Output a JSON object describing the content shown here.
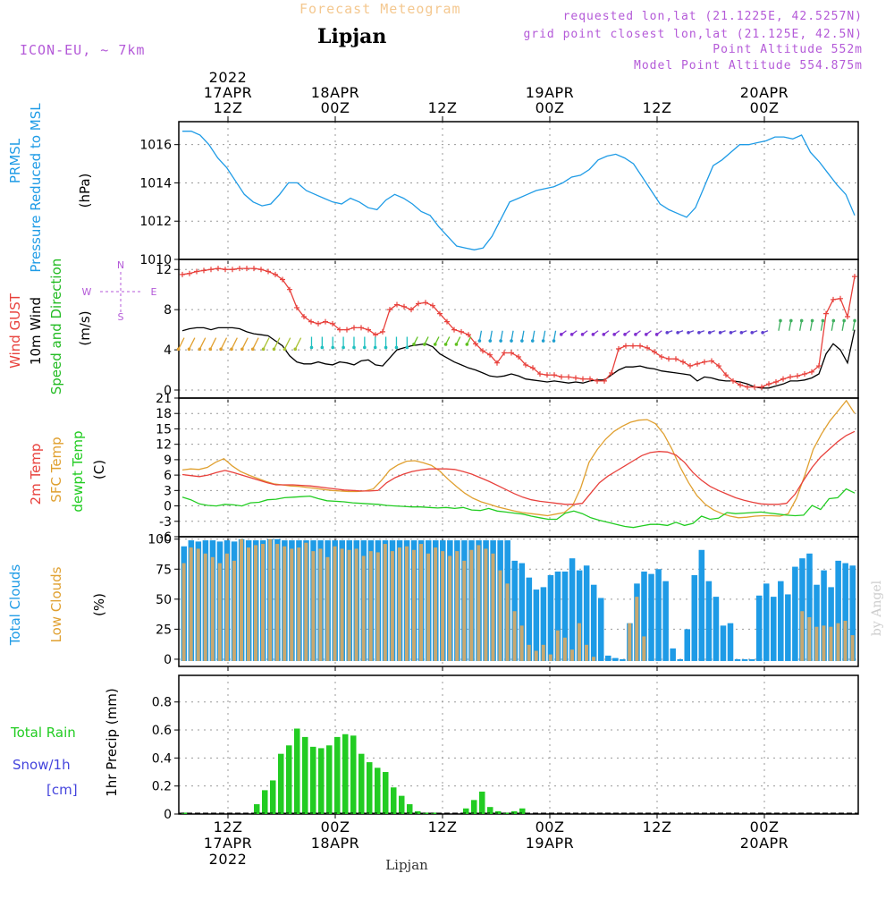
{
  "header": {
    "title": "Forecast Meteogram",
    "location": "Lipjan",
    "model": "ICON-EU, ~ 7km",
    "requested": "requested lon,lat (21.1225E, 42.5257N)",
    "gridpoint": "grid point closest lon,lat (21.125E, 42.5N)",
    "point_altitude": "Point Altitude 552m",
    "model_altitude": "Model Point Altitude 554.875m",
    "footer_location": "Lipjan",
    "watermark": "by Angel"
  },
  "colors": {
    "pressure": "#1e9be6",
    "gust": "#e8413c",
    "wind": "#000000",
    "wind_dir": "#22bb22",
    "temp": "#e8413c",
    "sfc_temp": "#e0a030",
    "dewpt": "#22cc22",
    "total_clouds": "#1e9be6",
    "low_clouds": "#c8a870",
    "rain": "#22cc22",
    "snow": "#4444dd",
    "header_title": "#f4c890",
    "meta": "#b45ad8"
  },
  "time_axis": {
    "top": [
      {
        "line1": "2022",
        "line2": "17APR",
        "line3": "12Z",
        "hour": 12
      },
      {
        "line1": "",
        "line2": "18APR",
        "line3": "00Z",
        "hour": 24
      },
      {
        "line1": "",
        "line2": "",
        "line3": "12Z",
        "hour": 36
      },
      {
        "line1": "",
        "line2": "19APR",
        "line3": "00Z",
        "hour": 48
      },
      {
        "line1": "",
        "line2": "",
        "line3": "12Z",
        "hour": 60
      },
      {
        "line1": "",
        "line2": "20APR",
        "line3": "00Z",
        "hour": 72
      }
    ],
    "bottom": [
      {
        "line1": "12Z",
        "line2": "17APR",
        "line3": "2022",
        "hour": 12
      },
      {
        "line1": "00Z",
        "line2": "18APR",
        "line3": "",
        "hour": 24
      },
      {
        "line1": "12Z",
        "line2": "",
        "line3": "",
        "hour": 36
      },
      {
        "line1": "00Z",
        "line2": "19APR",
        "line3": "",
        "hour": 48
      },
      {
        "line1": "12Z",
        "line2": "",
        "line3": "",
        "hour": 60
      },
      {
        "line1": "00Z",
        "line2": "20APR",
        "line3": "",
        "hour": 72
      }
    ],
    "start_hour": 6.5,
    "end_hour": 82.5
  },
  "chart_data": [
    {
      "type": "line",
      "ylabel_a": "PRMSL",
      "ylabel_b": "Pressure Reduced to MSL",
      "units": "(hPa)",
      "ylim": [
        1010,
        1017.2
      ],
      "yticks": [
        1010,
        1012,
        1014,
        1016
      ],
      "series": [
        {
          "values": [
            1016.7,
            1016.7,
            1016.5,
            1016.0,
            1015.3,
            1014.8,
            1014.1,
            1013.4,
            1013.0,
            1012.8,
            1012.9,
            1013.4,
            1014.0,
            1014.0,
            1013.6,
            1013.4,
            1013.2,
            1013.0,
            1012.9,
            1013.2,
            1013.0,
            1012.7,
            1012.6,
            1013.1,
            1013.4,
            1013.2,
            1012.9,
            1012.5,
            1012.3,
            1011.7,
            1011.2,
            1010.7,
            1010.6,
            1010.5,
            1010.6,
            1011.2,
            1012.1,
            1013.0,
            1013.2,
            1013.4,
            1013.6,
            1013.7,
            1013.8,
            1014.0,
            1014.3,
            1014.4,
            1014.7,
            1015.2,
            1015.4,
            1015.5,
            1015.3,
            1015.0,
            1014.3,
            1013.6,
            1012.9,
            1012.6,
            1012.4,
            1012.2,
            1012.7,
            1013.8,
            1014.9,
            1015.2,
            1015.6,
            1016.0,
            1016.0,
            1016.1,
            1016.2,
            1016.4,
            1016.4,
            1016.3,
            1016.5,
            1015.6,
            1015.1,
            1014.5,
            1013.9,
            1013.4,
            1012.3
          ]
        }
      ]
    },
    {
      "type": "line",
      "ylabel_a": "Wind GUST",
      "ylabel_b": "10m Wind",
      "ylabel_c": "Speed and Direction",
      "units": "(m/s)",
      "compass": {
        "n": "N",
        "s": "S",
        "w": "W",
        "e": "E"
      },
      "ylim": [
        -0.8,
        13
      ],
      "yticks": [
        0,
        4,
        8,
        12
      ],
      "series": [
        {
          "values": [
            11.5,
            11.6,
            11.8,
            11.9,
            12.0,
            12.1,
            12.0,
            12.0,
            12.1,
            12.1,
            12.1,
            12.0,
            11.8,
            11.5,
            11.0,
            10.0,
            8.2,
            7.3,
            6.8,
            6.6,
            6.8,
            6.6,
            6.0,
            6.0,
            6.2,
            6.2,
            6.0,
            5.5,
            5.8,
            8.0,
            8.5,
            8.3,
            8.0,
            8.6,
            8.7,
            8.4,
            7.6,
            6.8,
            6.0,
            5.8,
            5.5,
            4.6,
            3.9,
            3.5,
            2.7,
            3.7,
            3.7,
            3.3,
            2.5,
            2.2,
            1.6,
            1.5,
            1.5,
            1.3,
            1.3,
            1.2,
            1.1,
            1.1,
            0.9,
            0.9,
            1.7,
            4.1,
            4.4,
            4.4,
            4.4,
            4.2,
            3.8,
            3.3,
            3.1,
            3.1,
            2.8,
            2.4,
            2.6,
            2.8,
            2.9,
            2.4,
            1.5,
            0.9,
            0.5,
            0.3,
            0.3,
            0.3,
            0.6,
            0.8,
            1.1,
            1.3,
            1.4,
            1.6,
            1.8,
            2.4,
            7.6,
            9.0,
            9.1,
            7.3,
            11.3
          ]
        },
        {
          "values": [
            5.9,
            6.1,
            6.2,
            6.2,
            6.0,
            6.2,
            6.2,
            6.2,
            6.1,
            5.8,
            5.6,
            5.5,
            5.4,
            4.9,
            4.4,
            3.4,
            2.8,
            2.6,
            2.6,
            2.8,
            2.6,
            2.5,
            2.8,
            2.7,
            2.5,
            2.9,
            3.0,
            2.5,
            2.4,
            3.2,
            4.0,
            4.2,
            4.4,
            4.5,
            4.6,
            4.3,
            3.6,
            3.2,
            2.8,
            2.5,
            2.2,
            2.0,
            1.7,
            1.4,
            1.3,
            1.4,
            1.6,
            1.4,
            1.1,
            1.0,
            0.9,
            0.8,
            0.9,
            0.8,
            0.7,
            0.8,
            0.7,
            0.9,
            1.0,
            1.0,
            1.5,
            2.0,
            2.3,
            2.3,
            2.4,
            2.2,
            2.1,
            1.9,
            1.8,
            1.7,
            1.6,
            1.5,
            0.9,
            1.3,
            1.2,
            1.0,
            0.9,
            0.9,
            0.8,
            0.6,
            0.3,
            0.2,
            0.2,
            0.4,
            0.6,
            0.9,
            0.9,
            1.0,
            1.2,
            1.6,
            3.6,
            4.6,
            4.0,
            2.7,
            6.0
          ]
        }
      ]
    },
    {
      "type": "line",
      "ylabel_a": "2m Temp",
      "ylabel_b": "SFC Temp",
      "ylabel_c": "dewpt Temp",
      "units": "(C)",
      "ylim": [
        -6,
        21
      ],
      "yticks": [
        -6,
        -3,
        0,
        3,
        6,
        9,
        12,
        15,
        18,
        21
      ],
      "series": [
        {
          "values": [
            6.1,
            5.9,
            5.7,
            6.0,
            6.5,
            6.9,
            6.5,
            6.0,
            5.5,
            5.0,
            4.5,
            4.1,
            4.1,
            4.1,
            4.0,
            3.9,
            3.7,
            3.5,
            3.3,
            3.1,
            3.0,
            2.9,
            2.9,
            3.0,
            4.5,
            5.5,
            6.2,
            6.7,
            7.0,
            7.2,
            7.2,
            7.2,
            7.1,
            6.7,
            6.2,
            5.5,
            4.8,
            4.0,
            3.2,
            2.4,
            1.7,
            1.2,
            0.9,
            0.7,
            0.5,
            0.3,
            0.3,
            0.5,
            2.5,
            4.5,
            5.8,
            6.8,
            7.8,
            8.8,
            9.8,
            10.4,
            10.6,
            10.5,
            9.9,
            8.5,
            6.5,
            5.0,
            3.8,
            3.0,
            2.3,
            1.6,
            1.1,
            0.7,
            0.4,
            0.3,
            0.3,
            0.5,
            2.3,
            5.0,
            7.5,
            9.5,
            11.0,
            12.5,
            13.7,
            14.5
          ]
        },
        {
          "values": [
            7.0,
            7.2,
            7.1,
            7.5,
            8.5,
            9.2,
            7.8,
            6.7,
            6.0,
            5.4,
            4.8,
            4.3,
            4.1,
            3.9,
            3.8,
            3.6,
            3.4,
            3.2,
            3.0,
            2.9,
            2.8,
            2.8,
            2.9,
            3.3,
            5.0,
            7.0,
            8.0,
            8.7,
            8.8,
            8.4,
            7.9,
            6.8,
            5.2,
            3.8,
            2.5,
            1.5,
            0.8,
            0.3,
            -0.2,
            -0.6,
            -1.0,
            -1.3,
            -1.5,
            -1.7,
            -1.9,
            -1.6,
            -1.3,
            0.0,
            3.5,
            8.5,
            11.0,
            13.0,
            14.5,
            15.5,
            16.3,
            16.7,
            16.8,
            16.0,
            14.0,
            11.0,
            7.5,
            4.5,
            2.0,
            0.3,
            -0.8,
            -1.5,
            -2.0,
            -2.3,
            -2.2,
            -2.0,
            -1.9,
            -1.9,
            -2.0,
            -1.5,
            1.5,
            6.0,
            11.0,
            14.0,
            16.5,
            18.5,
            20.5,
            18.0
          ]
        },
        {
          "values": [
            1.7,
            1.2,
            0.4,
            0.1,
            0.0,
            0.3,
            0.2,
            0.0,
            0.6,
            0.7,
            1.2,
            1.3,
            1.6,
            1.7,
            1.8,
            1.9,
            1.4,
            1.0,
            0.9,
            0.8,
            0.6,
            0.5,
            0.4,
            0.3,
            0.1,
            0.0,
            -0.1,
            -0.2,
            -0.2,
            -0.3,
            -0.4,
            -0.3,
            -0.5,
            -0.3,
            -0.8,
            -0.9,
            -0.5,
            -1.0,
            -1.2,
            -1.4,
            -1.6,
            -2.0,
            -2.3,
            -2.6,
            -2.6,
            -1.4,
            -1.0,
            -1.5,
            -2.3,
            -2.8,
            -3.2,
            -3.6,
            -4.0,
            -4.2,
            -3.9,
            -3.6,
            -3.6,
            -3.8,
            -3.2,
            -3.8,
            -3.4,
            -2.0,
            -2.6,
            -2.4,
            -1.3,
            -1.5,
            -1.4,
            -1.3,
            -1.2,
            -1.4,
            -1.6,
            -1.8,
            -1.9,
            -1.8,
            0.1,
            -0.7,
            1.4,
            1.6,
            3.3,
            2.5
          ]
        }
      ]
    },
    {
      "type": "bar",
      "ylabel_a": "Total Clouds",
      "ylabel_b": "Low Clouds",
      "units": "(%)",
      "ylim": [
        -6,
        102
      ],
      "yticks": [
        0,
        25,
        50,
        75,
        100
      ],
      "series": [
        {
          "values": [
            94,
            99,
            98,
            99,
            99,
            98,
            99,
            98,
            100,
            99,
            99,
            99,
            100,
            100,
            99,
            99,
            99,
            99,
            99,
            99,
            99,
            99,
            99,
            99,
            99,
            99,
            99,
            99,
            99,
            99,
            99,
            99,
            99,
            99,
            99,
            99,
            99,
            99,
            99,
            99,
            99,
            99,
            99,
            99,
            99,
            99,
            82,
            80,
            68,
            58,
            60,
            70,
            73,
            73,
            84,
            74,
            78,
            62,
            51,
            3,
            1,
            0,
            30,
            63,
            73,
            71,
            75,
            65,
            9,
            0,
            25,
            70,
            91,
            65,
            52,
            28,
            30,
            0,
            0,
            0,
            53,
            63,
            52,
            65,
            54,
            77,
            84,
            88,
            62,
            74,
            60,
            82,
            80,
            78
          ]
        },
        {
          "values": [
            80,
            93,
            92,
            88,
            85,
            80,
            88,
            82,
            100,
            93,
            95,
            96,
            100,
            96,
            94,
            92,
            93,
            97,
            90,
            92,
            85,
            94,
            92,
            91,
            92,
            86,
            90,
            89,
            96,
            90,
            93,
            94,
            91,
            96,
            88,
            93,
            90,
            86,
            90,
            82,
            91,
            95,
            92,
            88,
            74,
            63,
            40,
            28,
            12,
            7,
            12,
            4,
            24,
            18,
            8,
            30,
            12,
            2,
            0,
            0,
            0,
            0,
            30,
            52,
            19,
            0,
            0,
            0,
            0,
            0,
            0,
            0,
            0,
            0,
            0,
            0,
            0,
            0,
            0,
            0,
            0,
            0,
            0,
            0,
            0,
            0,
            40,
            35,
            27,
            28,
            27,
            30,
            32,
            20
          ]
        }
      ]
    },
    {
      "type": "bar",
      "ylabel_a": "Total  Rain",
      "ylabel_b": "Snow/1h",
      "ylabel_c": "[cm]",
      "units": "1hr Precip (mm)",
      "ylim": [
        0,
        0.99
      ],
      "yticks": [
        0,
        0.2,
        0.4,
        0.6,
        0.8
      ],
      "series": [
        {
          "values": [
            0.01,
            0.0,
            0.0,
            0.0,
            0.0,
            0.0,
            0.0,
            0.0,
            0.0,
            0.07,
            0.17,
            0.24,
            0.43,
            0.49,
            0.61,
            0.55,
            0.48,
            0.47,
            0.49,
            0.55,
            0.57,
            0.56,
            0.43,
            0.37,
            0.33,
            0.3,
            0.19,
            0.13,
            0.07,
            0.02,
            0.01,
            0.01,
            0.0,
            0.0,
            0.0,
            0.04,
            0.1,
            0.16,
            0.05,
            0.02,
            0.01,
            0.02,
            0.04,
            0.0,
            0.0,
            0.0,
            0.0,
            0.0,
            0.0,
            0.0,
            0.0,
            0.0,
            0.0,
            0.0,
            0.0,
            0.0,
            0.0,
            0.0,
            0.0,
            0.0,
            0.0,
            0.0,
            0.0,
            0.0,
            0.0,
            0.0,
            0.0,
            0.0,
            0.0,
            0.0,
            0.0,
            0.0,
            0.0,
            0.0,
            0.0,
            0.0,
            0.0,
            0.0,
            0.0,
            0.0,
            0.0,
            0.0,
            0.0,
            0.0
          ]
        }
      ]
    }
  ]
}
